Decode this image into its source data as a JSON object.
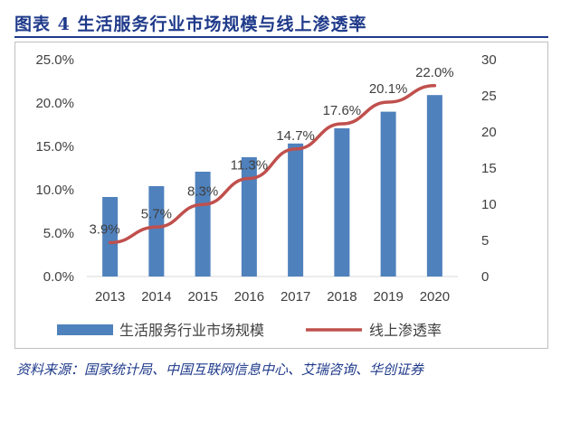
{
  "title": "图表 4   生活服务行业市场规模与线上渗透率",
  "source": "资料来源：国家统计局、中国互联网信息中心、艾瑞咨询、华创证券",
  "chart_data": {
    "type": "bar+line",
    "categories": [
      "2013",
      "2014",
      "2015",
      "2016",
      "2017",
      "2018",
      "2019",
      "2020"
    ],
    "series": [
      {
        "name": "生活服务行业市场规模",
        "type": "bar",
        "axis": "right",
        "values": [
          11,
          12.5,
          14.5,
          16.5,
          18.4,
          20.5,
          22.8,
          25.1
        ],
        "color": "#4f81bd"
      },
      {
        "name": "线上渗透率",
        "type": "line",
        "axis": "left",
        "values": [
          3.9,
          5.7,
          8.3,
          11.3,
          14.7,
          17.6,
          20.1,
          22.0
        ],
        "color": "#c0504d"
      }
    ],
    "data_labels": [
      "3.9%",
      "5.7%",
      "8.3%",
      "11.3%",
      "14.7%",
      "17.6%",
      "20.1%",
      "22.0%"
    ],
    "y_left": {
      "min": 0,
      "max": 25,
      "step": 5,
      "ticks": [
        "0.0%",
        "5.0%",
        "10.0%",
        "15.0%",
        "20.0%",
        "25.0%"
      ]
    },
    "y_right": {
      "min": 0,
      "max": 30,
      "step": 5,
      "ticks": [
        "0",
        "5",
        "10",
        "15",
        "20",
        "25",
        "30"
      ]
    },
    "legend": {
      "position": "bottom"
    }
  }
}
